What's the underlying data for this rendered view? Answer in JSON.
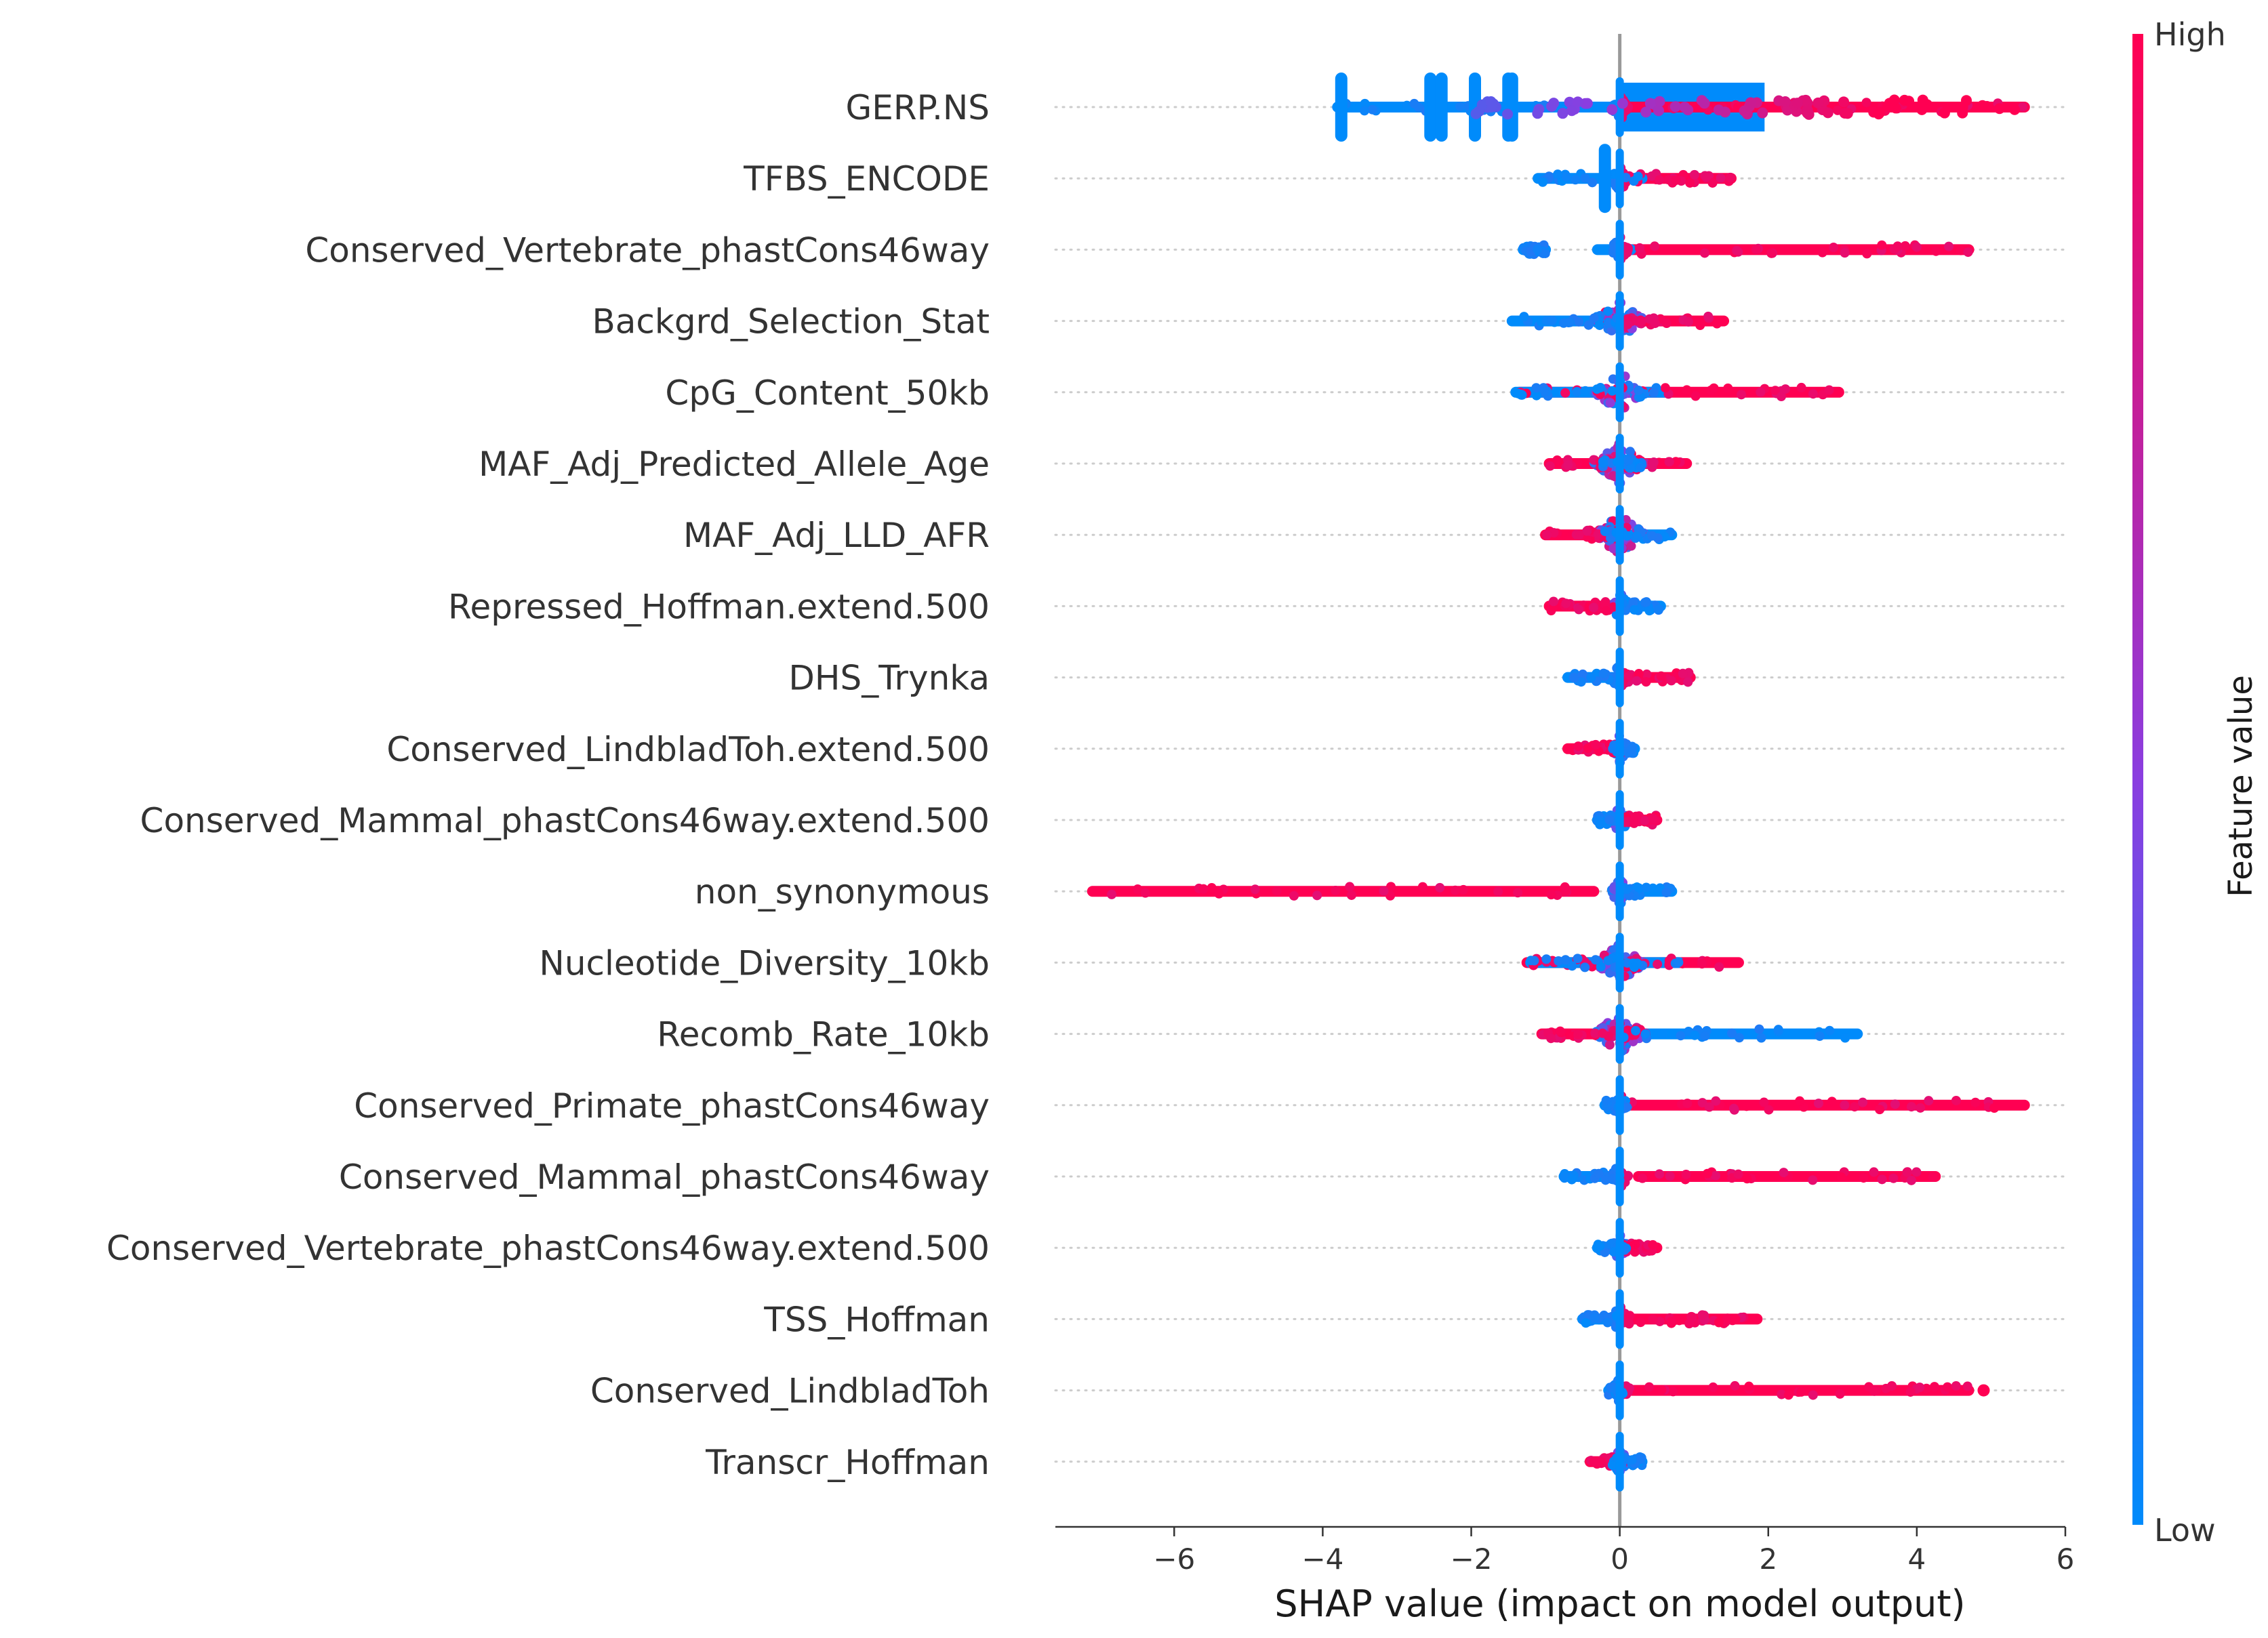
{
  "chart_data": {
    "type": "scatter",
    "subtype": "shap-summary-beeswarm",
    "xlabel": "SHAP value (impact on model output)",
    "xlim": [
      -7.6,
      6.0
    ],
    "xticks": [
      -6,
      -4,
      -2,
      0,
      2,
      4,
      6
    ],
    "xtick_labels": [
      "−6",
      "−4",
      "−2",
      "0",
      "2",
      "4",
      "6"
    ],
    "colorbar": {
      "label": "Feature value",
      "high_label": "High",
      "low_label": "Low",
      "high_color": "#ff0052",
      "mid_color": "#8a3ee0",
      "low_color": "#008bfb"
    },
    "features": [
      {
        "name": "GERP.NS",
        "low_range": [
          -3.8,
          0.0
        ],
        "high_range": [
          0.0,
          5.45
        ],
        "low_spikes": [
          -3.75,
          -2.55,
          -2.4,
          -1.95,
          -1.5,
          -1.45
        ],
        "bar": [
          0.0,
          1.95
        ]
      },
      {
        "name": "TFBS_ENCODE",
        "low_range": [
          -1.1,
          0.3
        ],
        "high_range": [
          0.0,
          1.5
        ],
        "low_spikes": [
          -0.2
        ]
      },
      {
        "name": "Conserved_Vertebrate_phastCons46way",
        "low_range": [
          -1.3,
          -1.0
        ],
        "low_range2": [
          -0.3,
          0.15
        ],
        "high_range": [
          0.15,
          4.7
        ]
      },
      {
        "name": "Backgrd_Selection_Stat",
        "low_range": [
          -1.45,
          0.0
        ],
        "high_range": [
          0.0,
          1.4
        ],
        "center_mixed": true
      },
      {
        "name": "CpG_Content_50kb",
        "low_range": [
          -1.4,
          0.6
        ],
        "high_range": [
          -1.35,
          2.95
        ],
        "center_mixed": true
      },
      {
        "name": "MAF_Adj_Predicted_Allele_Age",
        "low_range": [
          -0.3,
          0.3
        ],
        "high_range": [
          -0.95,
          0.9
        ],
        "center_mixed": true
      },
      {
        "name": "MAF_Adj_LLD_AFR",
        "low_range": [
          -0.2,
          0.7
        ],
        "high_range": [
          -1.0,
          0.1
        ],
        "center_mixed": true
      },
      {
        "name": "Repressed_Hoffman.extend.500",
        "low_range": [
          0.0,
          0.55
        ],
        "high_range": [
          -0.95,
          0.05
        ]
      },
      {
        "name": "DHS_Trynka",
        "low_range": [
          -0.7,
          0.0
        ],
        "high_range": [
          0.0,
          0.95
        ]
      },
      {
        "name": "Conserved_LindbladToh.extend.500",
        "low_range": [
          -0.1,
          0.2
        ],
        "high_range": [
          -0.7,
          0.05
        ]
      },
      {
        "name": "Conserved_Mammal_phastCons46way.extend.500",
        "low_range": [
          -0.3,
          0.0
        ],
        "high_range": [
          0.0,
          0.5
        ]
      },
      {
        "name": "non_synonymous",
        "low_range": [
          0.0,
          0.7
        ],
        "high_range": [
          -7.1,
          -0.35
        ]
      },
      {
        "name": "Nucleotide_Diversity_10kb",
        "low_range": [
          -1.2,
          0.8
        ],
        "high_range": [
          -1.25,
          1.6
        ],
        "center_mixed": true
      },
      {
        "name": "Recomb_Rate_10kb",
        "low_range": [
          -0.2,
          3.2
        ],
        "high_range": [
          -1.05,
          0.3
        ],
        "center_mixed": true
      },
      {
        "name": "Conserved_Primate_phastCons46way",
        "low_range": [
          -0.2,
          0.1
        ],
        "high_range": [
          0.15,
          5.45
        ]
      },
      {
        "name": "Conserved_Mammal_phastCons46way",
        "low_range": [
          -0.75,
          0.0
        ],
        "high_range": [
          0.25,
          4.25
        ]
      },
      {
        "name": "Conserved_Vertebrate_phastCons46way.extend.500",
        "low_range": [
          -0.3,
          0.1
        ],
        "high_range": [
          0.0,
          0.5
        ]
      },
      {
        "name": "TSS_Hoffman",
        "low_range": [
          -0.5,
          0.0
        ],
        "high_range": [
          0.0,
          1.85
        ]
      },
      {
        "name": "Conserved_LindbladToh",
        "low_range": [
          -0.15,
          0.05
        ],
        "high_range": [
          0.1,
          4.7
        ],
        "outliers": [
          4.9
        ]
      },
      {
        "name": "Transcr_Hoffman",
        "low_range": [
          -0.1,
          0.3
        ],
        "high_range": [
          -0.4,
          0.05
        ]
      }
    ]
  }
}
